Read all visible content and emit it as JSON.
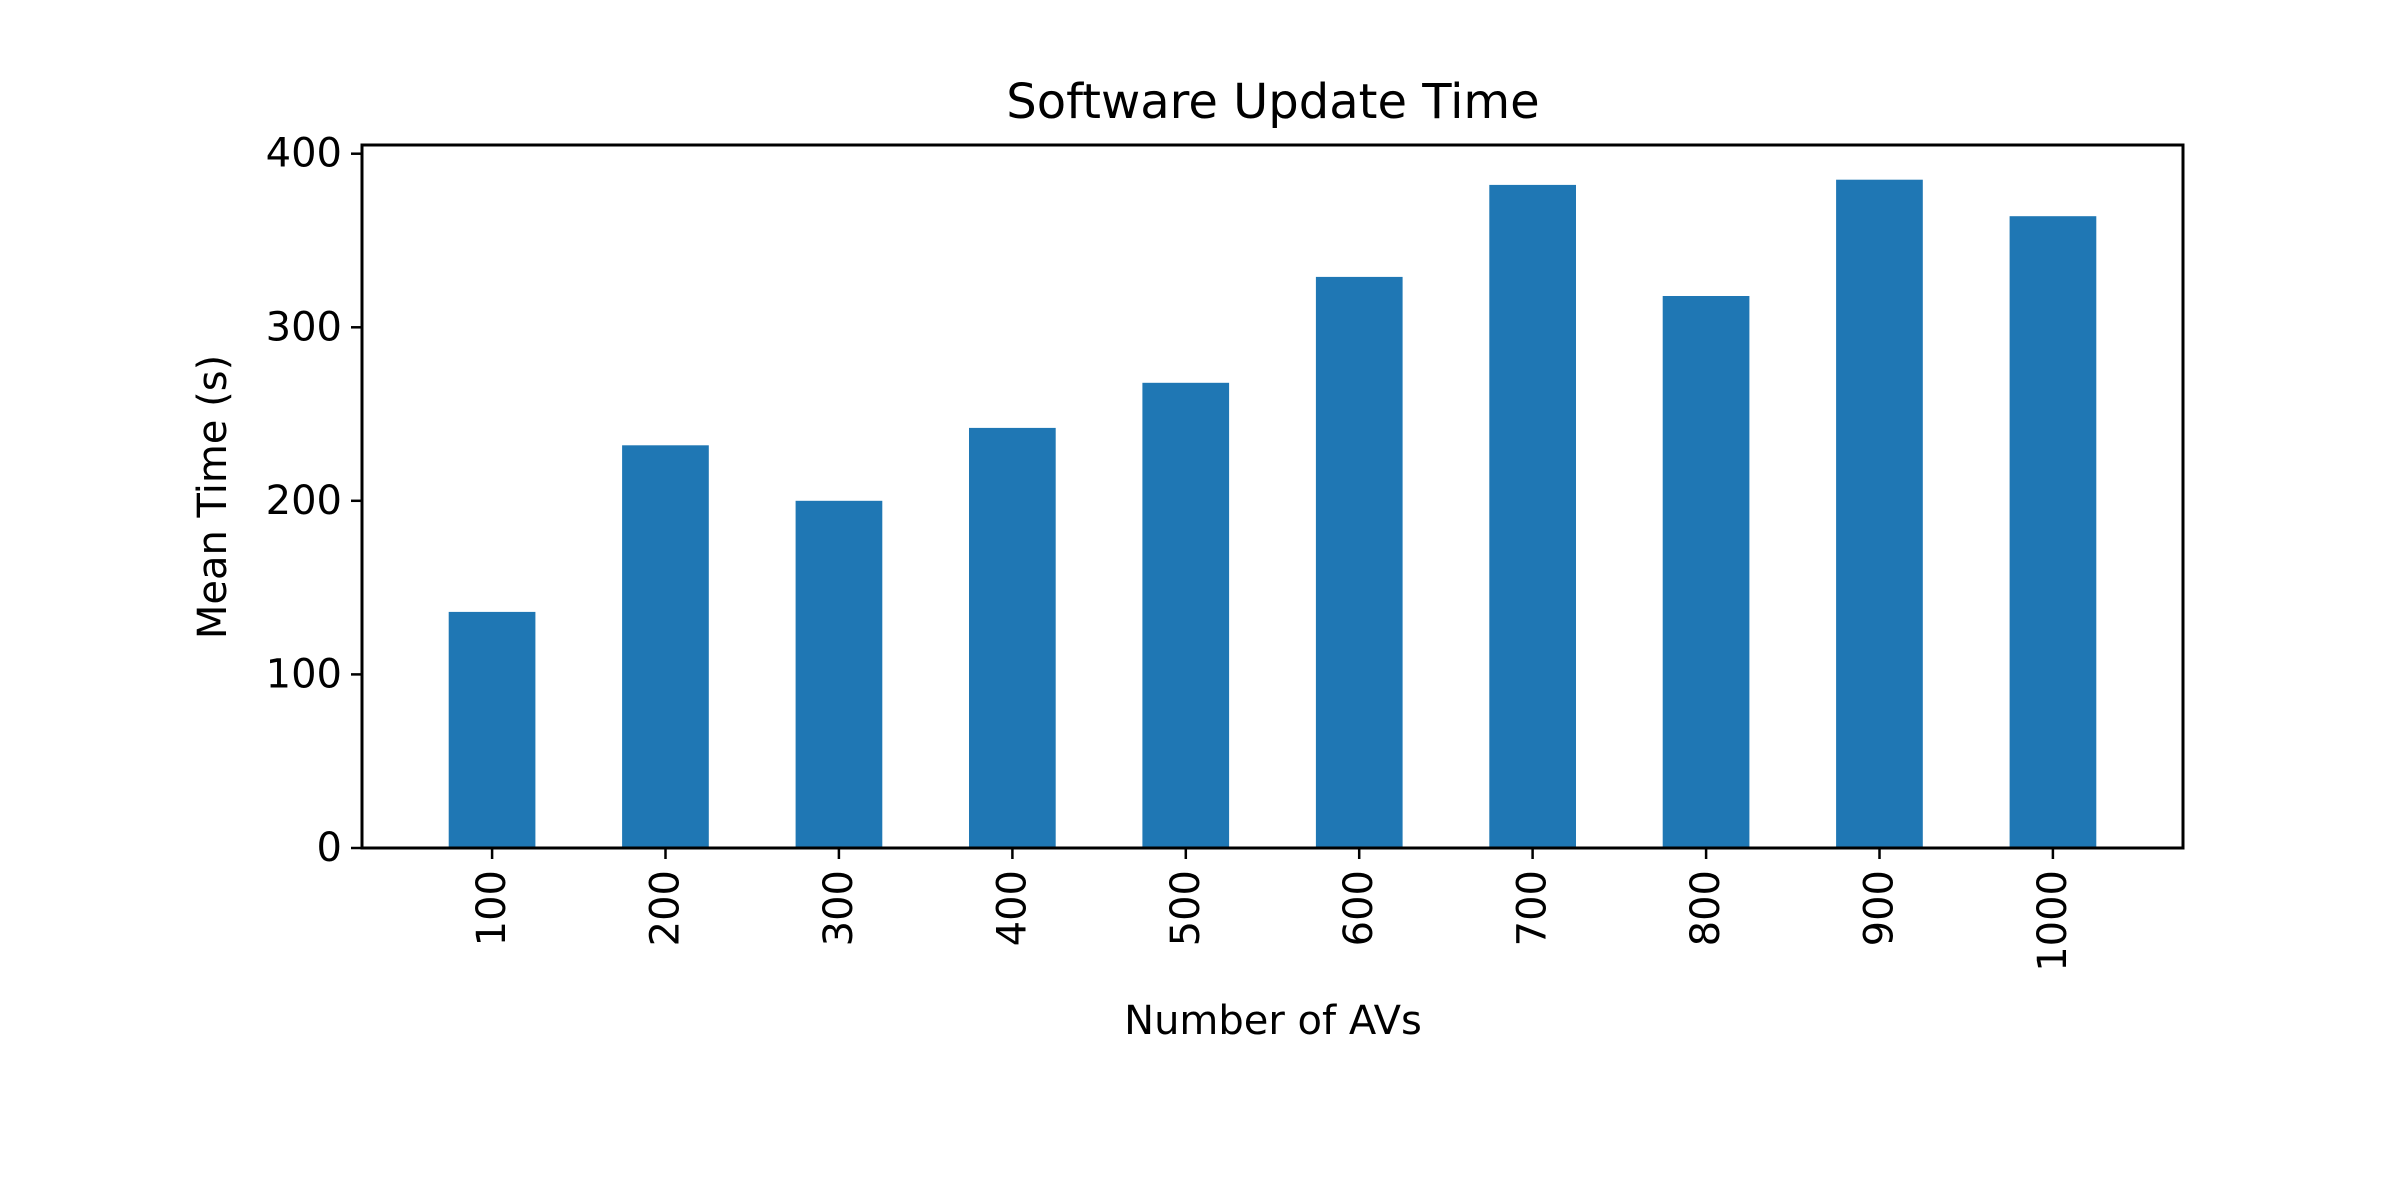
{
  "chart_data": {
    "type": "bar",
    "title": "Software Update Time",
    "xlabel": "Number of AVs",
    "ylabel": "Mean Time (s)",
    "categories": [
      "100",
      "200",
      "300",
      "400",
      "500",
      "600",
      "700",
      "800",
      "900",
      "1000"
    ],
    "values": [
      136,
      232,
      200,
      242,
      268,
      329,
      382,
      318,
      385,
      364
    ],
    "ylim": [
      0,
      405
    ],
    "yticks": [
      0,
      100,
      200,
      300,
      400
    ],
    "xtick_rotation": "vertical",
    "grid": false,
    "legend": "none",
    "bar_color": "#1f77b4"
  }
}
